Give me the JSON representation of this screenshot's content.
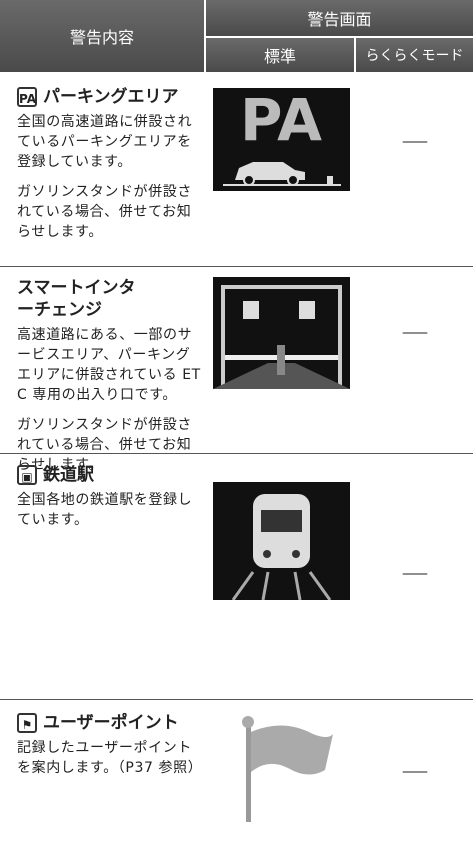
{
  "header": {
    "content": "警告内容",
    "screen": "警告画面",
    "standard": "標準",
    "easy_mode": "らくらくモード"
  },
  "rows": [
    {
      "badge": "PA",
      "title": "パーキングエリア",
      "paragraphs": [
        "全国の高速道路に併設されているパーキングエリアを登録しています。",
        "ガソリンスタンドが併設されている場合、併せてお知らせします。"
      ],
      "image_text": "PA",
      "easy_mode": "——"
    },
    {
      "title": "スマートインターチェンジ",
      "paragraphs": [
        "高速道路にある、一部のサービスエリア、パーキングエリアに併設されている ETC 専用の出入り口です。",
        "ガソリンスタンドが併設されている場合、併せてお知らせします。"
      ],
      "easy_mode": "——"
    },
    {
      "title": "鉄道駅",
      "paragraphs": [
        "全国各地の鉄道駅を登録しています。"
      ],
      "easy_mode": "——"
    },
    {
      "title": "ユーザーポイント",
      "paragraphs": [
        "記録したユーザーポイントを案内します。（P37 参照）"
      ],
      "easy_mode": "——"
    }
  ]
}
